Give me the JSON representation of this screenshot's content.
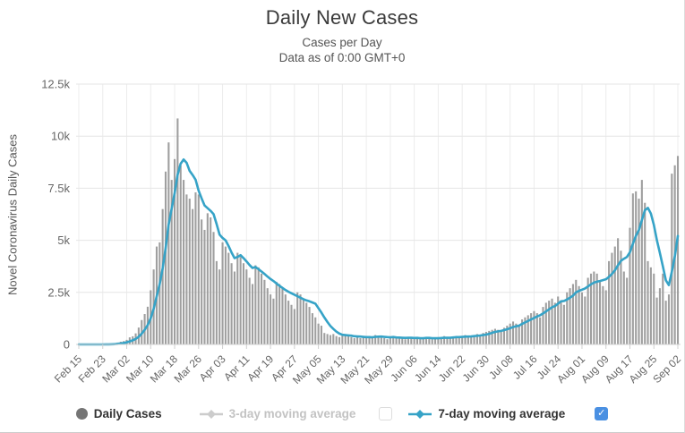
{
  "header": {
    "title": "Daily New Cases",
    "subtitle1": "Cases per Day",
    "subtitle2": "Data as of 0:00 GMT+0"
  },
  "legend": {
    "items": [
      {
        "label": "Daily Cases",
        "marker": "circle",
        "color": "#757575",
        "enabled": true
      },
      {
        "label": "3-day moving average",
        "marker": "line-diamond",
        "color": "#cccccc",
        "enabled": false
      },
      {
        "label": "7-day moving average",
        "marker": "line-diamond",
        "color": "#36a3c7",
        "enabled": true
      }
    ],
    "checkbox_unchecked_for": "3-day moving average",
    "checkbox_checked_for": "7-day moving average",
    "checked_glyph": "✓"
  },
  "colors": {
    "bar": "#9f9f9f",
    "ma7_line": "#36a3c7",
    "ma3_disabled": "#cccccc",
    "daily_marker": "#757575",
    "grid": "#e6e6e6",
    "vgrid": "#ececec",
    "axis": "#d0d0d0",
    "tick_text": "#666666",
    "title_text": "#3a3a3a",
    "subtitle_text": "#555555",
    "legend_text": "#333333",
    "legend_text_disabled": "#c3c3c3",
    "checkbox_checked": "#4a90e2"
  },
  "chart_data": {
    "type": "bar",
    "title": "Daily New Cases",
    "subtitle": [
      "Cases per Day",
      "Data as of 0:00 GMT+0"
    ],
    "ylabel": "Novel Coronavirus Daily Cases",
    "ylim": [
      0,
      12500
    ],
    "grid": true,
    "legend_position": "bottom",
    "y_ticks": [
      {
        "value": 0,
        "label": "0"
      },
      {
        "value": 2500,
        "label": "2.5k"
      },
      {
        "value": 5000,
        "label": "5k"
      },
      {
        "value": 7500,
        "label": "7.5k"
      },
      {
        "value": 10000,
        "label": "10k"
      },
      {
        "value": 12500,
        "label": "12.5k"
      }
    ],
    "x_tick_labels": [
      "Feb 15",
      "Feb 23",
      "Mar 02",
      "Mar 10",
      "Mar 18",
      "Mar 26",
      "Apr 03",
      "Apr 11",
      "Apr 19",
      "Apr 27",
      "May 05",
      "May 13",
      "May 21",
      "May 29",
      "Jun 06",
      "Jun 14",
      "Jun 22",
      "Jun 30",
      "Jul 08",
      "Jul 16",
      "Jul 24",
      "Aug 01",
      "Aug 09",
      "Aug 17",
      "Aug 25",
      "Sep 02"
    ],
    "x_tick_every_n_days": 8,
    "x_range": {
      "start": "Feb 15",
      "end": "Sep 02",
      "days": 201
    },
    "series": [
      {
        "name": "Daily Cases",
        "type": "bar",
        "color": "#9f9f9f",
        "visible": true,
        "values": [
          0,
          0,
          0,
          0,
          0,
          0,
          0,
          0,
          0,
          10,
          20,
          30,
          50,
          90,
          130,
          160,
          220,
          340,
          390,
          530,
          810,
          1170,
          1460,
          1810,
          2600,
          3600,
          4700,
          4900,
          6500,
          8300,
          9700,
          7900,
          8900,
          10850,
          8600,
          7900,
          7200,
          7000,
          6500,
          7300,
          7200,
          6000,
          5500,
          6300,
          6100,
          5400,
          4000,
          3600,
          4900,
          4700,
          4400,
          3900,
          3500,
          4400,
          4200,
          3900,
          3600,
          3200,
          2900,
          3800,
          3700,
          3400,
          3100,
          2700,
          2400,
          2200,
          3000,
          2900,
          2700,
          2400,
          2100,
          1900,
          1700,
          2500,
          2400,
          2200,
          2000,
          1800,
          1500,
          1300,
          1000,
          900,
          550,
          500,
          450,
          500,
          400,
          350,
          500,
          450,
          400,
          350,
          300,
          350,
          300,
          400,
          350,
          400,
          300,
          450,
          400,
          350,
          300,
          250,
          350,
          400,
          300,
          350,
          300,
          250,
          300,
          350,
          300,
          350,
          250,
          300,
          350,
          300,
          250,
          300,
          350,
          300,
          400,
          350,
          300,
          350,
          400,
          350,
          400,
          450,
          400,
          350,
          450,
          500,
          450,
          550,
          600,
          650,
          700,
          750,
          700,
          600,
          800,
          900,
          1000,
          1100,
          1000,
          900,
          1200,
          1300,
          1400,
          1500,
          1600,
          1500,
          1300,
          1800,
          2000,
          2100,
          2200,
          2000,
          2300,
          2100,
          1900,
          2500,
          2700,
          2900,
          3100,
          2800,
          2500,
          2300,
          3200,
          3400,
          3500,
          3400,
          3000,
          2800,
          2600,
          4000,
          4400,
          4700,
          5100,
          4500,
          3500,
          3200,
          5600,
          7250,
          7350,
          7000,
          7900,
          6800,
          4000,
          3700,
          3400,
          2250,
          2700,
          3400,
          2100,
          2400,
          8200,
          8600,
          9050
        ]
      },
      {
        "name": "3-day moving average",
        "type": "line",
        "color": "#cccccc",
        "visible": false,
        "derivation": "3-day moving average of Daily Cases (toggled off in screenshot)"
      },
      {
        "name": "7-day moving average",
        "type": "line",
        "color": "#36a3c7",
        "visible": true,
        "derivation": "trailing 7-day moving average of Daily Cases"
      }
    ]
  }
}
